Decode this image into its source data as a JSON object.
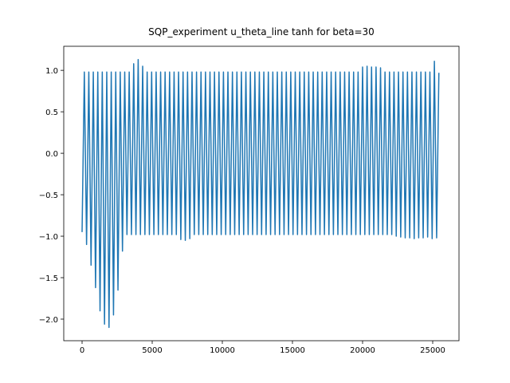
{
  "chart_data": {
    "type": "line",
    "title": "SQP_experiment u_theta_line tanh for beta=30",
    "x": [
      0,
      160,
      320,
      480,
      640,
      800,
      960,
      1120,
      1280,
      1440,
      1600,
      1760,
      1920,
      2080,
      2240,
      2400,
      2560,
      2720,
      2880,
      3040,
      3200,
      3360,
      3520,
      3680,
      3840,
      4000,
      4160,
      4320,
      4480,
      4640,
      4800,
      4960,
      5120,
      5280,
      5440,
      5600,
      5760,
      5920,
      6080,
      6240,
      6400,
      6560,
      6720,
      6880,
      7040,
      7200,
      7360,
      7520,
      7680,
      7840,
      8000,
      8160,
      8320,
      8480,
      8640,
      8800,
      8960,
      9120,
      9280,
      9440,
      9600,
      9760,
      9920,
      10080,
      10240,
      10400,
      10560,
      10720,
      10880,
      11040,
      11200,
      11360,
      11520,
      11680,
      11840,
      12000,
      12160,
      12320,
      12480,
      12640,
      12800,
      12960,
      13120,
      13280,
      13440,
      13600,
      13760,
      13920,
      14080,
      14240,
      14400,
      14560,
      14720,
      14880,
      15040,
      15200,
      15360,
      15520,
      15680,
      15840,
      16000,
      16160,
      16320,
      16480,
      16640,
      16800,
      16960,
      17120,
      17280,
      17440,
      17600,
      17760,
      17920,
      18080,
      18240,
      18400,
      18560,
      18720,
      18880,
      19040,
      19200,
      19360,
      19520,
      19680,
      19840,
      20000,
      20160,
      20320,
      20480,
      20640,
      20800,
      20960,
      21120,
      21280,
      21440,
      21600,
      21760,
      21920,
      22080,
      22240,
      22400,
      22560,
      22720,
      22880,
      23040,
      23200,
      23360,
      23520,
      23680,
      23840,
      24000,
      24160,
      24320,
      24480,
      24640,
      24800,
      24960,
      25120,
      25280,
      25440
    ],
    "series": [
      {
        "color": "#1f77b4",
        "values": [
          -0.95,
          0.98,
          -1.1,
          0.98,
          -1.35,
          0.98,
          -1.62,
          0.98,
          -1.9,
          0.98,
          -2.06,
          0.98,
          -2.1,
          0.98,
          -1.95,
          0.98,
          -1.65,
          0.98,
          -1.18,
          0.98,
          -0.98,
          0.98,
          -0.98,
          1.08,
          -0.98,
          1.13,
          -0.98,
          1.05,
          -0.98,
          0.98,
          -0.98,
          0.98,
          -0.98,
          0.98,
          -0.98,
          0.98,
          -0.98,
          0.98,
          -0.98,
          0.98,
          -0.98,
          0.98,
          -0.98,
          0.98,
          -1.04,
          0.98,
          -1.05,
          0.98,
          -1.03,
          0.98,
          -0.98,
          0.98,
          -0.98,
          0.98,
          -0.98,
          0.98,
          -0.98,
          0.98,
          -0.98,
          0.98,
          -0.98,
          0.98,
          -0.98,
          0.98,
          -0.98,
          0.98,
          -0.98,
          0.98,
          -0.98,
          0.98,
          -0.98,
          0.98,
          -0.98,
          0.98,
          -0.98,
          0.98,
          -0.98,
          0.98,
          -0.98,
          0.98,
          -0.98,
          0.98,
          -0.98,
          0.98,
          -0.98,
          0.98,
          -0.98,
          0.98,
          -0.98,
          0.98,
          -0.98,
          0.98,
          -0.98,
          0.98,
          -0.98,
          0.98,
          -0.98,
          0.98,
          -0.98,
          0.98,
          -0.98,
          0.98,
          -0.98,
          0.98,
          -0.98,
          0.98,
          -0.98,
          0.98,
          -0.98,
          0.98,
          -0.98,
          0.98,
          -0.98,
          0.98,
          -0.98,
          0.98,
          -0.98,
          0.98,
          -0.98,
          0.98,
          -0.98,
          0.98,
          -0.98,
          0.98,
          -0.98,
          1.04,
          -0.98,
          1.05,
          -0.98,
          1.04,
          -0.98,
          1.04,
          -0.98,
          1.03,
          -0.98,
          0.98,
          -0.98,
          0.98,
          -0.98,
          0.98,
          -1.0,
          0.98,
          -1.01,
          0.98,
          -1.02,
          0.98,
          -1.02,
          0.98,
          -1.03,
          0.98,
          -1.02,
          0.98,
          -1.02,
          0.98,
          -1.01,
          0.98,
          -1.03,
          1.11,
          -1.02,
          0.97
        ]
      }
    ],
    "xlim": [
      -1307,
      26875
    ],
    "ylim": [
      -2.26,
      1.29
    ],
    "xticks": [
      0,
      5000,
      10000,
      15000,
      20000,
      25000
    ],
    "yticks": [
      {
        "value": -2,
        "label": "−2.0"
      },
      {
        "value": -1.5,
        "label": "−1.5"
      },
      {
        "value": -1,
        "label": "−1.0"
      },
      {
        "value": -0.5,
        "label": "−0.5"
      },
      {
        "value": 0,
        "label": "0.0"
      },
      {
        "value": 0.5,
        "label": "0.5"
      },
      {
        "value": 1,
        "label": "1.0"
      }
    ]
  }
}
